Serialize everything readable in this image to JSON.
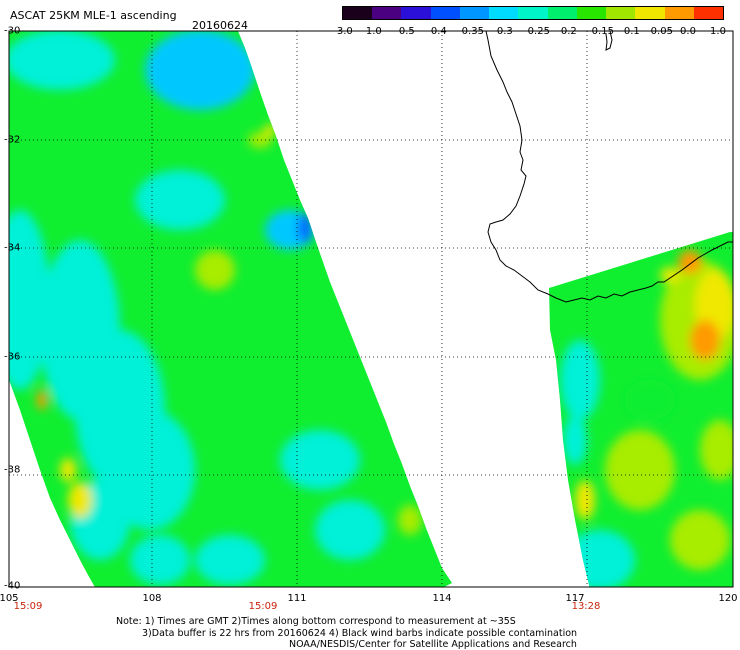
{
  "title": "ASCAT 25KM MLE-1 ascending",
  "date": "20160624",
  "colorbar": {
    "labels": [
      "-3.0",
      "-1.0",
      "-0.5",
      "-0.4",
      "-0.35",
      "-0.3",
      "-0.25",
      "-0.2",
      "-0.15",
      "-0.1",
      "-0.05",
      "0.0",
      "1.0"
    ],
    "colors": [
      "#1a001a",
      "#4a0080",
      "#2a10d8",
      "#0050ff",
      "#0096ff",
      "#00dcff",
      "#00f5c8",
      "#00f06e",
      "#28e600",
      "#a0e600",
      "#f0e600",
      "#ff9a00",
      "#ff3000"
    ]
  },
  "map": {
    "lat_labels": [
      "-30",
      "-32",
      "-34",
      "-36",
      "-38",
      "-40"
    ],
    "lon_labels": [
      "105",
      "108",
      "111",
      "114",
      "117",
      "120"
    ],
    "time_labels": [
      "15:09",
      "15:09",
      "13:28"
    ],
    "swath_colors": {
      "cyan": "#00f0d8",
      "lightblue": "#00c8ff",
      "blue": "#0064ff",
      "green": "#10ee30",
      "yellowgreen": "#a8ec00",
      "yellow": "#f0e800",
      "orange": "#ff9a00"
    }
  },
  "notes": {
    "line1": "Note: 1) Times are GMT 2)Times along bottom correspond to measurement at ~35S",
    "line2": "3)Data buffer is 22 hrs from 20160624 4) Black wind barbs indicate possible contamination",
    "line3": "NOAA/NESDIS/Center for Satellite Applications and Research"
  }
}
